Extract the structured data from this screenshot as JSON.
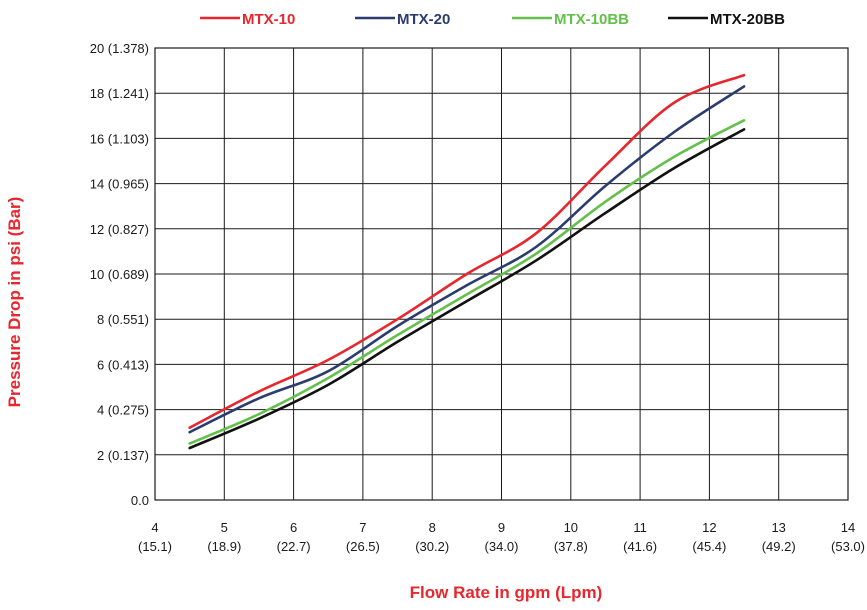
{
  "chart_data": {
    "type": "line",
    "xlabel": "Flow Rate in gpm (Lpm)",
    "ylabel": "Pressure Drop in psi (Bar)",
    "xlim": [
      4,
      14
    ],
    "ylim": [
      0,
      20
    ],
    "grid": true,
    "legend_position": "top",
    "x_ticks": [
      {
        "value": 4,
        "label": "4",
        "sublabel": "(15.1)"
      },
      {
        "value": 5,
        "label": "5",
        "sublabel": "(18.9)"
      },
      {
        "value": 6,
        "label": "6",
        "sublabel": "(22.7)"
      },
      {
        "value": 7,
        "label": "7",
        "sublabel": "(26.5)"
      },
      {
        "value": 8,
        "label": "8",
        "sublabel": "(30.2)"
      },
      {
        "value": 9,
        "label": "9",
        "sublabel": "(34.0)"
      },
      {
        "value": 10,
        "label": "10",
        "sublabel": "(37.8)"
      },
      {
        "value": 11,
        "label": "11",
        "sublabel": "(41.6)"
      },
      {
        "value": 12,
        "label": "12",
        "sublabel": "(45.4)"
      },
      {
        "value": 13,
        "label": "13",
        "sublabel": "(49.2)"
      },
      {
        "value": 14,
        "label": "14",
        "sublabel": "(53.0)"
      }
    ],
    "y_ticks": [
      {
        "value": 0,
        "label": "0.0"
      },
      {
        "value": 2,
        "label": "2  (0.137)"
      },
      {
        "value": 4,
        "label": "4  (0.275)"
      },
      {
        "value": 6,
        "label": "6  (0.413)"
      },
      {
        "value": 8,
        "label": "8  (0.551)"
      },
      {
        "value": 10,
        "label": "10 (0.689)"
      },
      {
        "value": 12,
        "label": "12  (0.827)"
      },
      {
        "value": 14,
        "label": "14 (0.965)"
      },
      {
        "value": 16,
        "label": "16  (1.103)"
      },
      {
        "value": 18,
        "label": "18  (1.241)"
      },
      {
        "value": 20,
        "label": "20  (1.378)"
      }
    ],
    "series": [
      {
        "name": "MTX-10",
        "color": "#e8262d",
        "points": [
          [
            4.5,
            3.2
          ],
          [
            5.5,
            4.8
          ],
          [
            6.5,
            6.2
          ],
          [
            7.5,
            8.0
          ],
          [
            8.5,
            10.0
          ],
          [
            9.5,
            11.8
          ],
          [
            10.5,
            14.8
          ],
          [
            11.5,
            17.6
          ],
          [
            12.5,
            18.8
          ]
        ]
      },
      {
        "name": "MTX-20",
        "color": "#2b3c6e",
        "points": [
          [
            4.5,
            3.0
          ],
          [
            5.5,
            4.5
          ],
          [
            6.5,
            5.7
          ],
          [
            7.5,
            7.7
          ],
          [
            8.5,
            9.5
          ],
          [
            9.5,
            11.2
          ],
          [
            10.5,
            13.9
          ],
          [
            11.5,
            16.3
          ],
          [
            12.5,
            18.3
          ]
        ]
      },
      {
        "name": "MTX-10BB",
        "color": "#63c04a",
        "points": [
          [
            4.5,
            2.5
          ],
          [
            5.5,
            3.8
          ],
          [
            6.5,
            5.4
          ],
          [
            7.5,
            7.3
          ],
          [
            8.5,
            9.1
          ],
          [
            9.5,
            10.9
          ],
          [
            10.5,
            13.2
          ],
          [
            11.5,
            15.2
          ],
          [
            12.5,
            16.8
          ]
        ]
      },
      {
        "name": "MTX-20BB",
        "color": "#111111",
        "points": [
          [
            4.5,
            2.3
          ],
          [
            5.5,
            3.6
          ],
          [
            6.5,
            5.1
          ],
          [
            7.5,
            7.0
          ],
          [
            8.5,
            8.8
          ],
          [
            9.5,
            10.6
          ],
          [
            10.5,
            12.7
          ],
          [
            11.5,
            14.7
          ],
          [
            12.5,
            16.4
          ]
        ]
      }
    ]
  },
  "colors": {
    "axis_title": "#e8262d",
    "grid": "#1a1a1a"
  }
}
